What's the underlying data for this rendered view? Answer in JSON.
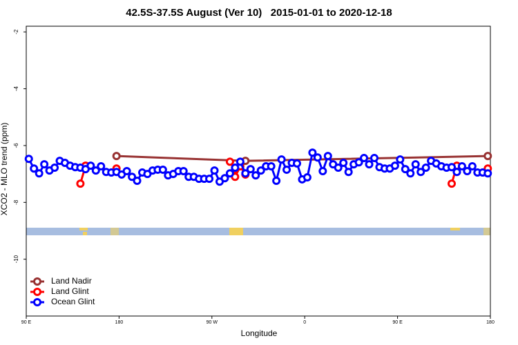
{
  "chart_data": {
    "type": "line",
    "title": "42.5S-37.5S August (Ver 10)   2015-01-01 to 2020-12-18",
    "xlabel": "Longitude",
    "ylabel": "XCO2 - MLO trend (ppm)",
    "xlim": [
      90,
      540
    ],
    "ylim": [
      -12,
      -1.8
    ],
    "xticks": [
      {
        "value": 90,
        "label": "90 E"
      },
      180,
      {
        "value": 270,
        "label": "90 W"
      },
      {
        "value": 360,
        "label": "0"
      },
      {
        "value": 450,
        "label": "90 E"
      },
      {
        "value": 540,
        "label": "180"
      }
    ],
    "yticks": [
      -2,
      -4,
      -6,
      -8,
      -10
    ],
    "legend": "bottom-left",
    "series": [
      {
        "name": "Land Nadir",
        "color": "#983232",
        "x": [
          177.5,
          302.5,
          537.5
        ],
        "values": [
          -6.37,
          -6.54,
          -6.37
        ]
      },
      {
        "name": "Land Glint",
        "color": "#ff0000",
        "x": [
          142.5,
          147.5,
          null,
          177.5,
          null,
          287.5,
          292.5,
          292.5,
          297.5,
          302.5,
          null,
          502.5,
          507.5,
          null,
          537.5
        ],
        "values": [
          -7.34,
          -6.71,
          null,
          -6.81,
          null,
          -6.57,
          -6.85,
          -7.1,
          -6.73,
          -7.02,
          null,
          -7.34,
          -6.71,
          null,
          -6.81
        ]
      },
      {
        "name": "Ocean Glint",
        "color": "#0000ff",
        "x": [
          92.5,
          97.5,
          102.5,
          107.5,
          112.5,
          117.5,
          122.5,
          127.5,
          132.5,
          137.5,
          142.5,
          147.5,
          152.5,
          157.5,
          162.5,
          167.5,
          172.5,
          177.5,
          182.5,
          187.5,
          192.5,
          197.5,
          202.5,
          207.5,
          212.5,
          217.5,
          222.5,
          227.5,
          232.5,
          237.5,
          242.5,
          247.5,
          252.5,
          257.5,
          262.5,
          267.5,
          272.5,
          277.5,
          282.5,
          287.5,
          292.5,
          297.5,
          302.5,
          307.5,
          312.5,
          317.5,
          322.5,
          327.5,
          332.5,
          337.5,
          342.5,
          347.5,
          352.5,
          357.5,
          362.5,
          367.5,
          372.5,
          377.5,
          382.5,
          387.5,
          392.5,
          397.5,
          402.5,
          407.5,
          412.5,
          417.5,
          422.5,
          427.5,
          432.5,
          437.5,
          442.5,
          447.5,
          452.5,
          457.5,
          462.5,
          467.5,
          472.5,
          477.5,
          482.5,
          487.5,
          492.5,
          497.5,
          502.5,
          507.5,
          512.5,
          517.5,
          522.5,
          527.5,
          532.5,
          537.5
        ],
        "values": [
          -6.47,
          -6.81,
          -6.98,
          -6.66,
          -6.88,
          -6.78,
          -6.54,
          -6.61,
          -6.71,
          -6.76,
          -6.78,
          -6.83,
          -6.71,
          -6.88,
          -6.73,
          -6.93,
          -6.95,
          -6.93,
          -7.02,
          -6.9,
          -7.1,
          -7.24,
          -6.95,
          -7.0,
          -6.88,
          -6.85,
          -6.85,
          -7.05,
          -7.0,
          -6.9,
          -6.9,
          -7.1,
          -7.1,
          -7.17,
          -7.17,
          -7.17,
          -6.88,
          -7.27,
          -7.15,
          -6.98,
          -6.78,
          -6.57,
          -6.98,
          -6.83,
          -7.05,
          -6.88,
          -6.73,
          -6.73,
          -7.24,
          -6.49,
          -6.85,
          -6.61,
          -6.63,
          -7.19,
          -7.12,
          -6.25,
          -6.42,
          -6.9,
          -6.37,
          -6.66,
          -6.78,
          -6.61,
          -6.93,
          -6.66,
          -6.59,
          -6.44,
          -6.66,
          -6.44,
          -6.76,
          -6.81,
          -6.81,
          -6.71,
          -6.49,
          -6.83,
          -6.98,
          -6.66,
          -6.93,
          -6.78,
          -6.54,
          -6.63,
          -6.73,
          -6.78,
          -6.76,
          -6.93,
          -6.73,
          -6.9,
          -6.73,
          -6.95,
          -6.95,
          -6.98
        ]
      }
    ]
  }
}
